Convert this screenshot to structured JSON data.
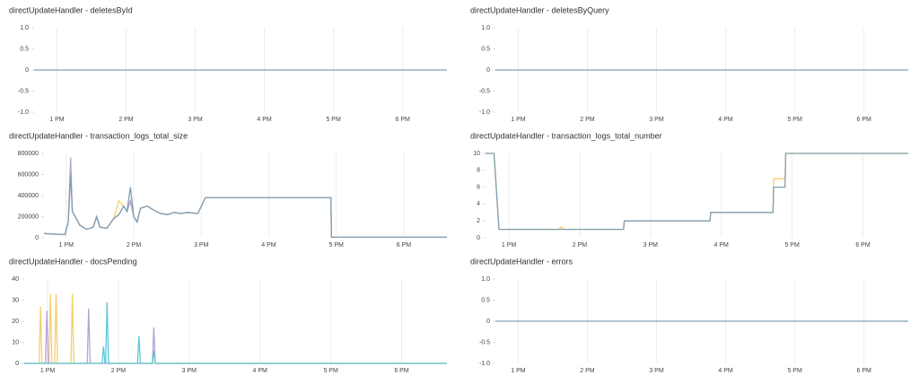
{
  "chart_data": [
    {
      "type": "line",
      "title": "directUpdateHandler - deletesById",
      "grid": "x",
      "x": [
        12.67,
        18.64
      ],
      "xlim": [
        12.67,
        18.64
      ],
      "xticks": [
        {
          "value": 13,
          "label": "1 PM"
        },
        {
          "value": 14,
          "label": "2 PM"
        },
        {
          "value": 15,
          "label": "3 PM"
        },
        {
          "value": 16,
          "label": "4 PM"
        },
        {
          "value": 17,
          "label": "5 PM"
        },
        {
          "value": 18,
          "label": "6 PM"
        }
      ],
      "ylim": [
        -1,
        1
      ],
      "yticks": [
        {
          "value": 1,
          "label": "1.0"
        },
        0.5,
        0,
        -0.5,
        {
          "value": -1,
          "label": "-1.0"
        }
      ],
      "series": [
        {
          "color": "#7f9fb3",
          "values": [
            0,
            0
          ]
        }
      ]
    },
    {
      "type": "line",
      "title": "directUpdateHandler - deletesByQuery",
      "grid": "x",
      "x": [
        12.67,
        18.64
      ],
      "xlim": [
        12.67,
        18.64
      ],
      "xticks": [
        {
          "value": 13,
          "label": "1 PM"
        },
        {
          "value": 14,
          "label": "2 PM"
        },
        {
          "value": 15,
          "label": "3 PM"
        },
        {
          "value": 16,
          "label": "4 PM"
        },
        {
          "value": 17,
          "label": "5 PM"
        },
        {
          "value": 18,
          "label": "6 PM"
        }
      ],
      "ylim": [
        -1,
        1
      ],
      "yticks": [
        {
          "value": 1,
          "label": "1.0"
        },
        0.5,
        0,
        -0.5,
        {
          "value": -1,
          "label": "-1.0"
        }
      ],
      "series": [
        {
          "color": "#7f9fb3",
          "values": [
            0,
            0
          ]
        }
      ]
    },
    {
      "type": "line",
      "title": "directUpdateHandler - transaction_logs_total_size",
      "grid": "x",
      "x": [
        12.67,
        12.98,
        13.03,
        13.065,
        13.09,
        13.15,
        13.2,
        13.3,
        13.4,
        13.45,
        13.5,
        13.6,
        13.7,
        13.78,
        13.85,
        13.9,
        13.95,
        14.0,
        14.05,
        14.1,
        14.2,
        14.3,
        14.4,
        14.5,
        14.6,
        14.7,
        14.8,
        14.95,
        15.06,
        16.92,
        16.93,
        18.64
      ],
      "xlim": [
        12.67,
        18.64
      ],
      "xticks": [
        {
          "value": 13,
          "label": "1 PM"
        },
        {
          "value": 14,
          "label": "2 PM"
        },
        {
          "value": 15,
          "label": "3 PM"
        },
        {
          "value": 16,
          "label": "4 PM"
        },
        {
          "value": 17,
          "label": "5 PM"
        },
        {
          "value": 18,
          "label": "6 PM"
        }
      ],
      "ylim": [
        0,
        800000
      ],
      "yticks": [
        0,
        200000,
        400000,
        600000,
        800000
      ],
      "series": [
        {
          "color": "#f6cf6a",
          "values": [
            40000,
            30000,
            150000,
            600000,
            250000,
            180000,
            120000,
            80000,
            100000,
            200000,
            100000,
            90000,
            180000,
            350000,
            300000,
            250000,
            350000,
            200000,
            150000,
            280000,
            300000,
            260000,
            230000,
            220000,
            240000,
            230000,
            240000,
            230000,
            380000,
            380000,
            5000,
            5000
          ]
        },
        {
          "color": "#b9a0d8",
          "values": [
            40000,
            30000,
            150000,
            760000,
            250000,
            180000,
            120000,
            80000,
            100000,
            200000,
            100000,
            90000,
            180000,
            220000,
            300000,
            250000,
            350000,
            200000,
            150000,
            280000,
            300000,
            260000,
            230000,
            220000,
            240000,
            230000,
            240000,
            230000,
            380000,
            380000,
            5000,
            5000
          ]
        },
        {
          "color": "#7f9fb3",
          "values": [
            40000,
            30000,
            150000,
            600000,
            250000,
            180000,
            120000,
            80000,
            100000,
            200000,
            100000,
            90000,
            180000,
            220000,
            300000,
            250000,
            480000,
            200000,
            150000,
            280000,
            300000,
            260000,
            230000,
            220000,
            240000,
            230000,
            240000,
            230000,
            380000,
            380000,
            5000,
            5000
          ]
        }
      ]
    },
    {
      "type": "line",
      "title": "directUpdateHandler - transaction_logs_total_number",
      "grid": "x",
      "x": [
        12.67,
        12.79,
        12.86,
        13.7,
        13.74,
        13.78,
        14.62,
        14.63,
        15.84,
        15.85,
        16.73,
        16.74,
        16.9,
        16.91,
        18.64
      ],
      "xlim": [
        12.67,
        18.64
      ],
      "xticks": [
        {
          "value": 13,
          "label": "1 PM"
        },
        {
          "value": 14,
          "label": "2 PM"
        },
        {
          "value": 15,
          "label": "3 PM"
        },
        {
          "value": 16,
          "label": "4 PM"
        },
        {
          "value": 17,
          "label": "5 PM"
        },
        {
          "value": 18,
          "label": "6 PM"
        }
      ],
      "ylim": [
        0,
        10
      ],
      "yticks": [
        0,
        2,
        4,
        6,
        8,
        10
      ],
      "series": [
        {
          "color": "#f6cf6a",
          "values": [
            10,
            10,
            1,
            1,
            1.3,
            1,
            1,
            2,
            2,
            3,
            3,
            7,
            7,
            10,
            10
          ]
        },
        {
          "color": "#7f9fb3",
          "values": [
            10,
            10,
            1,
            1,
            1,
            1,
            1,
            2,
            2,
            3,
            3,
            6,
            6,
            10,
            10
          ]
        }
      ]
    },
    {
      "type": "line",
      "title": "directUpdateHandler - docsPending",
      "grid": "x",
      "x": [
        12.67,
        12.88,
        12.9,
        12.92,
        12.97,
        12.99,
        13.01,
        13.02,
        13.04,
        13.06,
        13.1,
        13.12,
        13.14,
        13.33,
        13.35,
        13.37,
        13.56,
        13.58,
        13.6,
        13.77,
        13.79,
        13.81,
        13.82,
        13.84,
        13.86,
        14.27,
        14.29,
        14.31,
        14.48,
        14.5,
        14.52,
        18.64
      ],
      "xlim": [
        12.67,
        18.64
      ],
      "xticks": [
        {
          "value": 13,
          "label": "1 PM"
        },
        {
          "value": 14,
          "label": "2 PM"
        },
        {
          "value": 15,
          "label": "3 PM"
        },
        {
          "value": 16,
          "label": "4 PM"
        },
        {
          "value": 17,
          "label": "5 PM"
        },
        {
          "value": 18,
          "label": "6 PM"
        }
      ],
      "ylim": [
        0,
        40
      ],
      "yticks": [
        0,
        10,
        20,
        30,
        40
      ],
      "series": [
        {
          "color": "#f6cf6a",
          "values": [
            0,
            0,
            27,
            0,
            0,
            0,
            0,
            0,
            33,
            0,
            0,
            33,
            0,
            0,
            33,
            0,
            0,
            0,
            0,
            0,
            0,
            0,
            0,
            0,
            0,
            0,
            0,
            0,
            0,
            0,
            0,
            0
          ]
        },
        {
          "color": "#b9a0d8",
          "values": [
            0,
            0,
            0,
            0,
            0,
            25,
            0,
            0,
            0,
            0,
            0,
            0,
            0,
            0,
            0,
            0,
            0,
            26,
            0,
            0,
            0,
            0,
            0,
            0,
            0,
            0,
            0,
            0,
            0,
            17,
            0,
            0
          ]
        },
        {
          "color": "#5cc8d4",
          "values": [
            0,
            0,
            0,
            0,
            0,
            0,
            0,
            0,
            0,
            0,
            0,
            0,
            0,
            0,
            0,
            0,
            0,
            0,
            0,
            0,
            8,
            0,
            0,
            29,
            0,
            0,
            13,
            0,
            0,
            6,
            0,
            0
          ]
        }
      ]
    },
    {
      "type": "line",
      "title": "directUpdateHandler - errors",
      "grid": "x",
      "x": [
        12.67,
        18.64
      ],
      "xlim": [
        12.67,
        18.64
      ],
      "xticks": [
        {
          "value": 13,
          "label": "1 PM"
        },
        {
          "value": 14,
          "label": "2 PM"
        },
        {
          "value": 15,
          "label": "3 PM"
        },
        {
          "value": 16,
          "label": "4 PM"
        },
        {
          "value": 17,
          "label": "5 PM"
        },
        {
          "value": 18,
          "label": "6 PM"
        }
      ],
      "ylim": [
        -1,
        1
      ],
      "yticks": [
        {
          "value": 1,
          "label": "1.0"
        },
        0.5,
        0,
        -0.5,
        {
          "value": -1,
          "label": "-1.0"
        }
      ],
      "series": [
        {
          "color": "#7f9fb3",
          "values": [
            0,
            0
          ]
        }
      ]
    }
  ]
}
